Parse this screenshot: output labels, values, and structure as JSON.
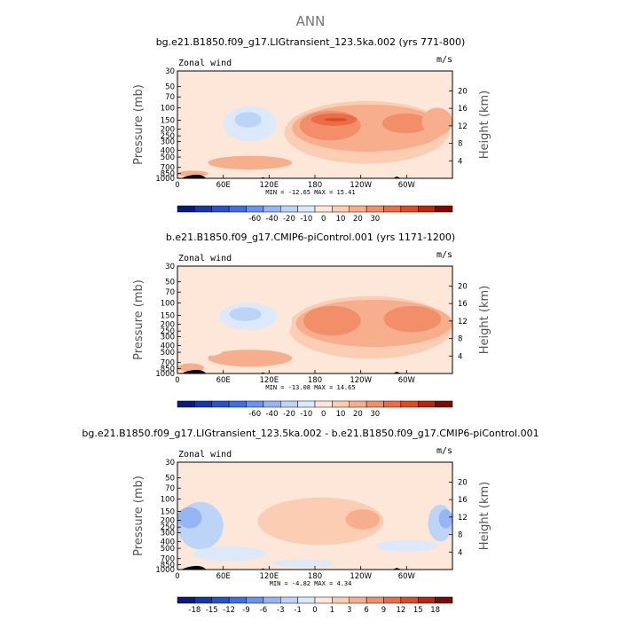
{
  "figure": {
    "title": "ANN"
  },
  "chart_data": [
    {
      "type": "heatmap",
      "title": "bg.e21.B1850.f09_g17.LIGtransient_123.5ka.002 (yrs 771-800)",
      "variable": "Zonal wind",
      "units": "m/s",
      "ylabel_left": "Pressure (mb)",
      "ylabel_right": "Height (km)",
      "x_ticks": [
        "0",
        "60E",
        "120E",
        "180",
        "120W",
        "60W"
      ],
      "pressure_ticks": [
        "30",
        "50",
        "70",
        "100",
        "150",
        "200",
        "250",
        "300",
        "400",
        "500",
        "700",
        "850",
        "1000"
      ],
      "height_ticks": [
        "4",
        "8",
        "12",
        "16",
        "20"
      ],
      "stats": "MIN = -12.65   MAX =  15.41",
      "colorbar": {
        "labels": [
          "-60",
          "-40",
          "-20",
          "-10",
          "0",
          "10",
          "20",
          "30"
        ],
        "colors": [
          "#0a1b78",
          "#1a36a6",
          "#2a52c8",
          "#3f6fe0",
          "#6a92ee",
          "#95b5f4",
          "#bcd5f6",
          "#dbe9fa",
          "#fde7d8",
          "#fbcdb3",
          "#f7ae8c",
          "#f28e69",
          "#ec6c45",
          "#dd4b24",
          "#b8260f",
          "#7a0b04"
        ]
      },
      "features": [
        {
          "level": 2,
          "lon": [
            140,
            355
          ],
          "p": [
            80,
            620
          ]
        },
        {
          "level": 3,
          "lon": [
            150,
            350
          ],
          "p": [
            90,
            420
          ]
        },
        {
          "level": 4,
          "lon": [
            160,
            240
          ],
          "p": [
            110,
            290
          ]
        },
        {
          "level": 4,
          "lon": [
            268,
            330
          ],
          "p": [
            120,
            230
          ]
        },
        {
          "level": 5,
          "lon": [
            175,
            235
          ],
          "p": [
            120,
            180
          ]
        },
        {
          "level": 6,
          "lon": [
            192,
            222
          ],
          "p": [
            140,
            155
          ]
        },
        {
          "level": 3,
          "lon": [
            320,
            360
          ],
          "p": [
            100,
            250
          ]
        },
        {
          "level": 3,
          "lon": [
            40,
            150
          ],
          "p": [
            480,
            750
          ]
        },
        {
          "level": 3,
          "lon": [
            0,
            40
          ],
          "p": [
            780,
            950
          ]
        },
        {
          "level": 1,
          "lon": [
            0,
            360
          ],
          "p": [
            30,
            62
          ]
        },
        {
          "level": 1,
          "lon": [
            52,
            140
          ],
          "p": [
            85,
            380
          ]
        },
        {
          "level": -1,
          "lon": [
            60,
            130
          ],
          "p": [
            95,
            300
          ]
        },
        {
          "level": -2,
          "lon": [
            75,
            110
          ],
          "p": [
            115,
            190
          ]
        },
        {
          "level": 1,
          "lon": [
            150,
            245
          ],
          "p": [
            740,
            930
          ]
        },
        {
          "level": 1,
          "lon": [
            330,
            360
          ],
          "p": [
            780,
            1000
          ]
        }
      ]
    },
    {
      "type": "heatmap",
      "title": "b.e21.B1850.f09_g17.CMIP6-piControl.001 (yrs 1171-1200)",
      "variable": "Zonal wind",
      "units": "m/s",
      "ylabel_left": "Pressure (mb)",
      "ylabel_right": "Height (km)",
      "x_ticks": [
        "0",
        "60E",
        "120E",
        "180",
        "120W",
        "60W"
      ],
      "pressure_ticks": [
        "30",
        "50",
        "70",
        "100",
        "150",
        "200",
        "250",
        "300",
        "400",
        "500",
        "700",
        "850",
        "1000"
      ],
      "height_ticks": [
        "4",
        "8",
        "12",
        "16",
        "20"
      ],
      "stats": "MIN = -13.08   MAX =  14.65",
      "colorbar": {
        "labels": [
          "-60",
          "-40",
          "-20",
          "-10",
          "0",
          "10",
          "20",
          "30"
        ],
        "colors": [
          "#0a1b78",
          "#1a36a6",
          "#2a52c8",
          "#3f6fe0",
          "#6a92ee",
          "#95b5f4",
          "#bcd5f6",
          "#dbe9fa",
          "#fde7d8",
          "#fbcdb3",
          "#f7ae8c",
          "#f28e69",
          "#ec6c45",
          "#dd4b24",
          "#b8260f",
          "#7a0b04"
        ]
      },
      "features": [
        {
          "level": 2,
          "lon": [
            145,
            360
          ],
          "p": [
            80,
            620
          ]
        },
        {
          "level": 3,
          "lon": [
            155,
            360
          ],
          "p": [
            90,
            420
          ]
        },
        {
          "level": 4,
          "lon": [
            165,
            240
          ],
          "p": [
            110,
            290
          ]
        },
        {
          "level": 4,
          "lon": [
            270,
            345
          ],
          "p": [
            110,
            260
          ]
        },
        {
          "level": 3,
          "lon": [
            40,
            150
          ],
          "p": [
            460,
            800
          ]
        },
        {
          "level": 3,
          "lon": [
            0,
            35
          ],
          "p": [
            720,
            950
          ]
        },
        {
          "level": 1,
          "lon": [
            0,
            120
          ],
          "p": [
            50,
            70
          ]
        },
        {
          "level": 1,
          "lon": [
            48,
            150
          ],
          "p": [
            85,
            420
          ]
        },
        {
          "level": -1,
          "lon": [
            55,
            130
          ],
          "p": [
            100,
            240
          ]
        },
        {
          "level": -2,
          "lon": [
            68,
            110
          ],
          "p": [
            115,
            180
          ]
        },
        {
          "level": 1,
          "lon": [
            28,
            60
          ],
          "p": [
            380,
            560
          ]
        },
        {
          "level": 1,
          "lon": [
            150,
            270
          ],
          "p": [
            720,
            950
          ]
        }
      ]
    },
    {
      "type": "heatmap",
      "title": "bg.e21.B1850.f09_g17.LIGtransient_123.5ka.002 - b.e21.B1850.f09_g17.CMIP6-piControl.001",
      "variable": "Zonal wind",
      "units": "m/s",
      "ylabel_left": "Pressure (mb)",
      "ylabel_right": "Height (km)",
      "x_ticks": [
        "0",
        "60E",
        "120E",
        "180",
        "120W",
        "60W"
      ],
      "pressure_ticks": [
        "30",
        "50",
        "70",
        "100",
        "150",
        "200",
        "250",
        "300",
        "400",
        "500",
        "700",
        "850",
        "1000"
      ],
      "height_ticks": [
        "4",
        "8",
        "12",
        "16",
        "20"
      ],
      "stats": "MIN =  -4.82   MAX =   4.34",
      "colorbar": {
        "labels": [
          "-18",
          "-15",
          "-12",
          "-9",
          "-6",
          "-3",
          "-1",
          "0",
          "1",
          "3",
          "6",
          "9",
          "12",
          "15",
          "18"
        ],
        "colors": [
          "#0a1b78",
          "#1a36a6",
          "#2a52c8",
          "#3f6fe0",
          "#6a92ee",
          "#95b5f4",
          "#bcd5f6",
          "#dbe9fa",
          "#fde7d8",
          "#fbcdb3",
          "#f7ae8c",
          "#f28e69",
          "#ec6c45",
          "#dd4b24",
          "#b8260f",
          "#7a0b04"
        ]
      },
      "features": [
        {
          "level": 1,
          "lon": [
            80,
            300
          ],
          "p": [
            70,
            700
          ]
        },
        {
          "level": 2,
          "lon": [
            105,
            270
          ],
          "p": [
            95,
            450
          ]
        },
        {
          "level": 3,
          "lon": [
            220,
            265
          ],
          "p": [
            140,
            270
          ]
        },
        {
          "level": 1,
          "lon": [
            0,
            40
          ],
          "p": [
            820,
            980
          ]
        },
        {
          "level": 1,
          "lon": [
            290,
            345
          ],
          "p": [
            560,
            760
          ]
        },
        {
          "level": -2,
          "lon": [
            0,
            60
          ],
          "p": [
            110,
            520
          ]
        },
        {
          "level": -3,
          "lon": [
            0,
            32
          ],
          "p": [
            130,
            260
          ]
        },
        {
          "level": -2,
          "lon": [
            328,
            360
          ],
          "p": [
            120,
            400
          ]
        },
        {
          "level": -3,
          "lon": [
            342,
            360
          ],
          "p": [
            140,
            260
          ]
        },
        {
          "level": -1,
          "lon": [
            20,
            115
          ],
          "p": [
            470,
            760
          ]
        },
        {
          "level": -1,
          "lon": [
            125,
            205
          ],
          "p": [
            720,
            920
          ]
        },
        {
          "level": -1,
          "lon": [
            260,
            340
          ],
          "p": [
            380,
            560
          ]
        }
      ]
    }
  ]
}
